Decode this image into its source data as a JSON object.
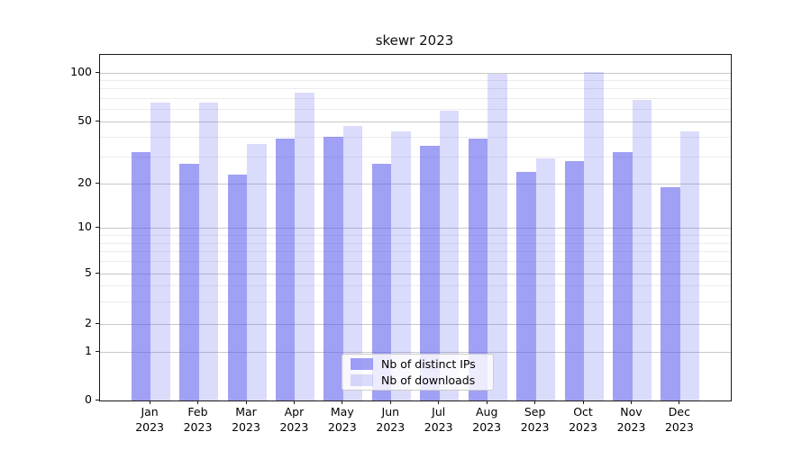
{
  "figure": {
    "title": "skewr 2023"
  },
  "chart_data": {
    "type": "bar",
    "title": "skewr 2023",
    "categories": [
      "Jan",
      "Feb",
      "Mar",
      "Apr",
      "May",
      "Jun",
      "Jul",
      "Aug",
      "Sep",
      "Oct",
      "Nov",
      "Dec"
    ],
    "category_year": "2023",
    "series": [
      {
        "name": "Nb of distinct IPs",
        "color": "rgba(92,92,237,0.58)",
        "values": [
          32,
          27,
          23,
          39,
          40,
          27,
          35,
          39,
          24,
          28,
          32,
          19
        ]
      },
      {
        "name": "Nb of downloads",
        "color": "rgba(92,92,237,0.22)",
        "values": [
          65,
          65,
          36,
          75,
          47,
          43,
          58,
          98,
          29,
          101,
          68,
          43
        ]
      }
    ],
    "xlabel": "",
    "ylabel": "",
    "yscale": "symlog",
    "ylim": [
      0,
      127
    ],
    "ytick_values": [
      100,
      50,
      20,
      10,
      5,
      2,
      1,
      0
    ],
    "ytick_labels": [
      "100",
      "50",
      "20",
      "10",
      "5",
      "2",
      "1",
      "0"
    ],
    "minor_gridline_values": [
      3,
      4,
      6,
      7,
      8,
      9,
      30,
      40,
      60,
      70,
      80,
      90
    ],
    "grid": true,
    "legend": {
      "position": "lower-center",
      "items": [
        "Nb of distinct IPs",
        "Nb of downloads"
      ]
    },
    "colors": {
      "distinct_ips_bar": "rgba(92,92,237,0.58)",
      "downloads_bar": "rgba(92,92,237,0.22)",
      "major_grid": "#c9c9c9",
      "minor_grid": "#ececec",
      "axis": "#1a1a1a",
      "background": "#ffffff"
    },
    "scale_control_points": [
      [
        0,
        0
      ],
      [
        1,
        0.1406
      ],
      [
        2,
        0.2227
      ],
      [
        5,
        0.3685
      ],
      [
        10,
        0.4992
      ],
      [
        20,
        0.6268
      ],
      [
        50,
        0.8073
      ],
      [
        100,
        0.9492
      ]
    ]
  }
}
